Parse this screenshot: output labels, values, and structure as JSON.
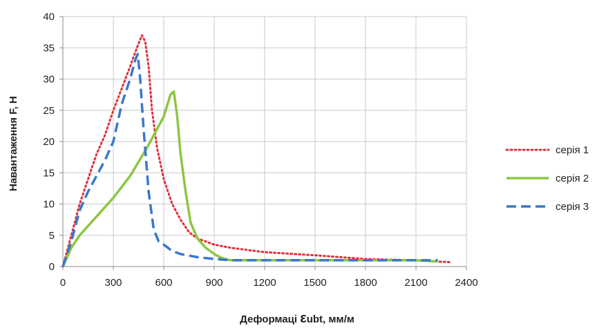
{
  "chart_data": {
    "type": "line",
    "xlabel_prefix": "Деформаці",
    "xlabel_symbol": "ε",
    "xlabel_sub": "ubt",
    "xlabel_suffix": ", мм/м",
    "ylabel": "Навантаження  F, Н",
    "xlim": [
      0,
      2400
    ],
    "ylim": [
      0,
      40
    ],
    "xticks": [
      "0",
      "300",
      "600",
      "900",
      "1200",
      "1500",
      "1800",
      "2100",
      "2400"
    ],
    "yticks": [
      "0",
      "5",
      "10",
      "15",
      "20",
      "25",
      "30",
      "35",
      "40"
    ],
    "grid": true,
    "legend_position": "right",
    "series": [
      {
        "name": "серія 1",
        "color": "#e0303a",
        "style": "dotted",
        "x": [
          0,
          50,
          100,
          150,
          200,
          250,
          300,
          350,
          400,
          440,
          470,
          490,
          510,
          530,
          560,
          600,
          650,
          700,
          750,
          800,
          900,
          1000,
          1200,
          1500,
          1800,
          2100,
          2300
        ],
        "y": [
          0,
          5,
          10,
          14,
          18,
          21,
          25,
          28.5,
          32,
          35,
          37,
          36,
          32,
          25,
          19,
          14,
          10,
          7.5,
          5.5,
          4.5,
          3.5,
          3,
          2.3,
          1.8,
          1.2,
          1,
          0.7
        ]
      },
      {
        "name": "серія 2",
        "color": "#8cc63f",
        "style": "solid",
        "x": [
          0,
          50,
          100,
          150,
          200,
          300,
          400,
          500,
          600,
          640,
          660,
          680,
          700,
          730,
          760,
          800,
          850,
          900,
          950,
          1000,
          1200,
          1500,
          1800,
          2100,
          2230
        ],
        "y": [
          0,
          3,
          5,
          6.5,
          8,
          11,
          14.5,
          19,
          24,
          27.5,
          28,
          24,
          18,
          12,
          7,
          4.5,
          3,
          2,
          1.3,
          1,
          1,
          1,
          1,
          1,
          0.8
        ]
      },
      {
        "name": "серія 3",
        "color": "#3a78c9",
        "style": "dashed",
        "x": [
          0,
          50,
          100,
          150,
          200,
          250,
          300,
          350,
          400,
          430,
          445,
          460,
          480,
          510,
          540,
          570,
          600,
          650,
          700,
          800,
          900,
          1000,
          1200,
          1500,
          1800,
          2100,
          2230
        ],
        "y": [
          0,
          4,
          9,
          12,
          14.5,
          17,
          20,
          26,
          30,
          33,
          34,
          30,
          22,
          12,
          6,
          4,
          3.5,
          2.5,
          2,
          1.5,
          1.2,
          1,
          1,
          1,
          1,
          1,
          1
        ]
      }
    ]
  }
}
